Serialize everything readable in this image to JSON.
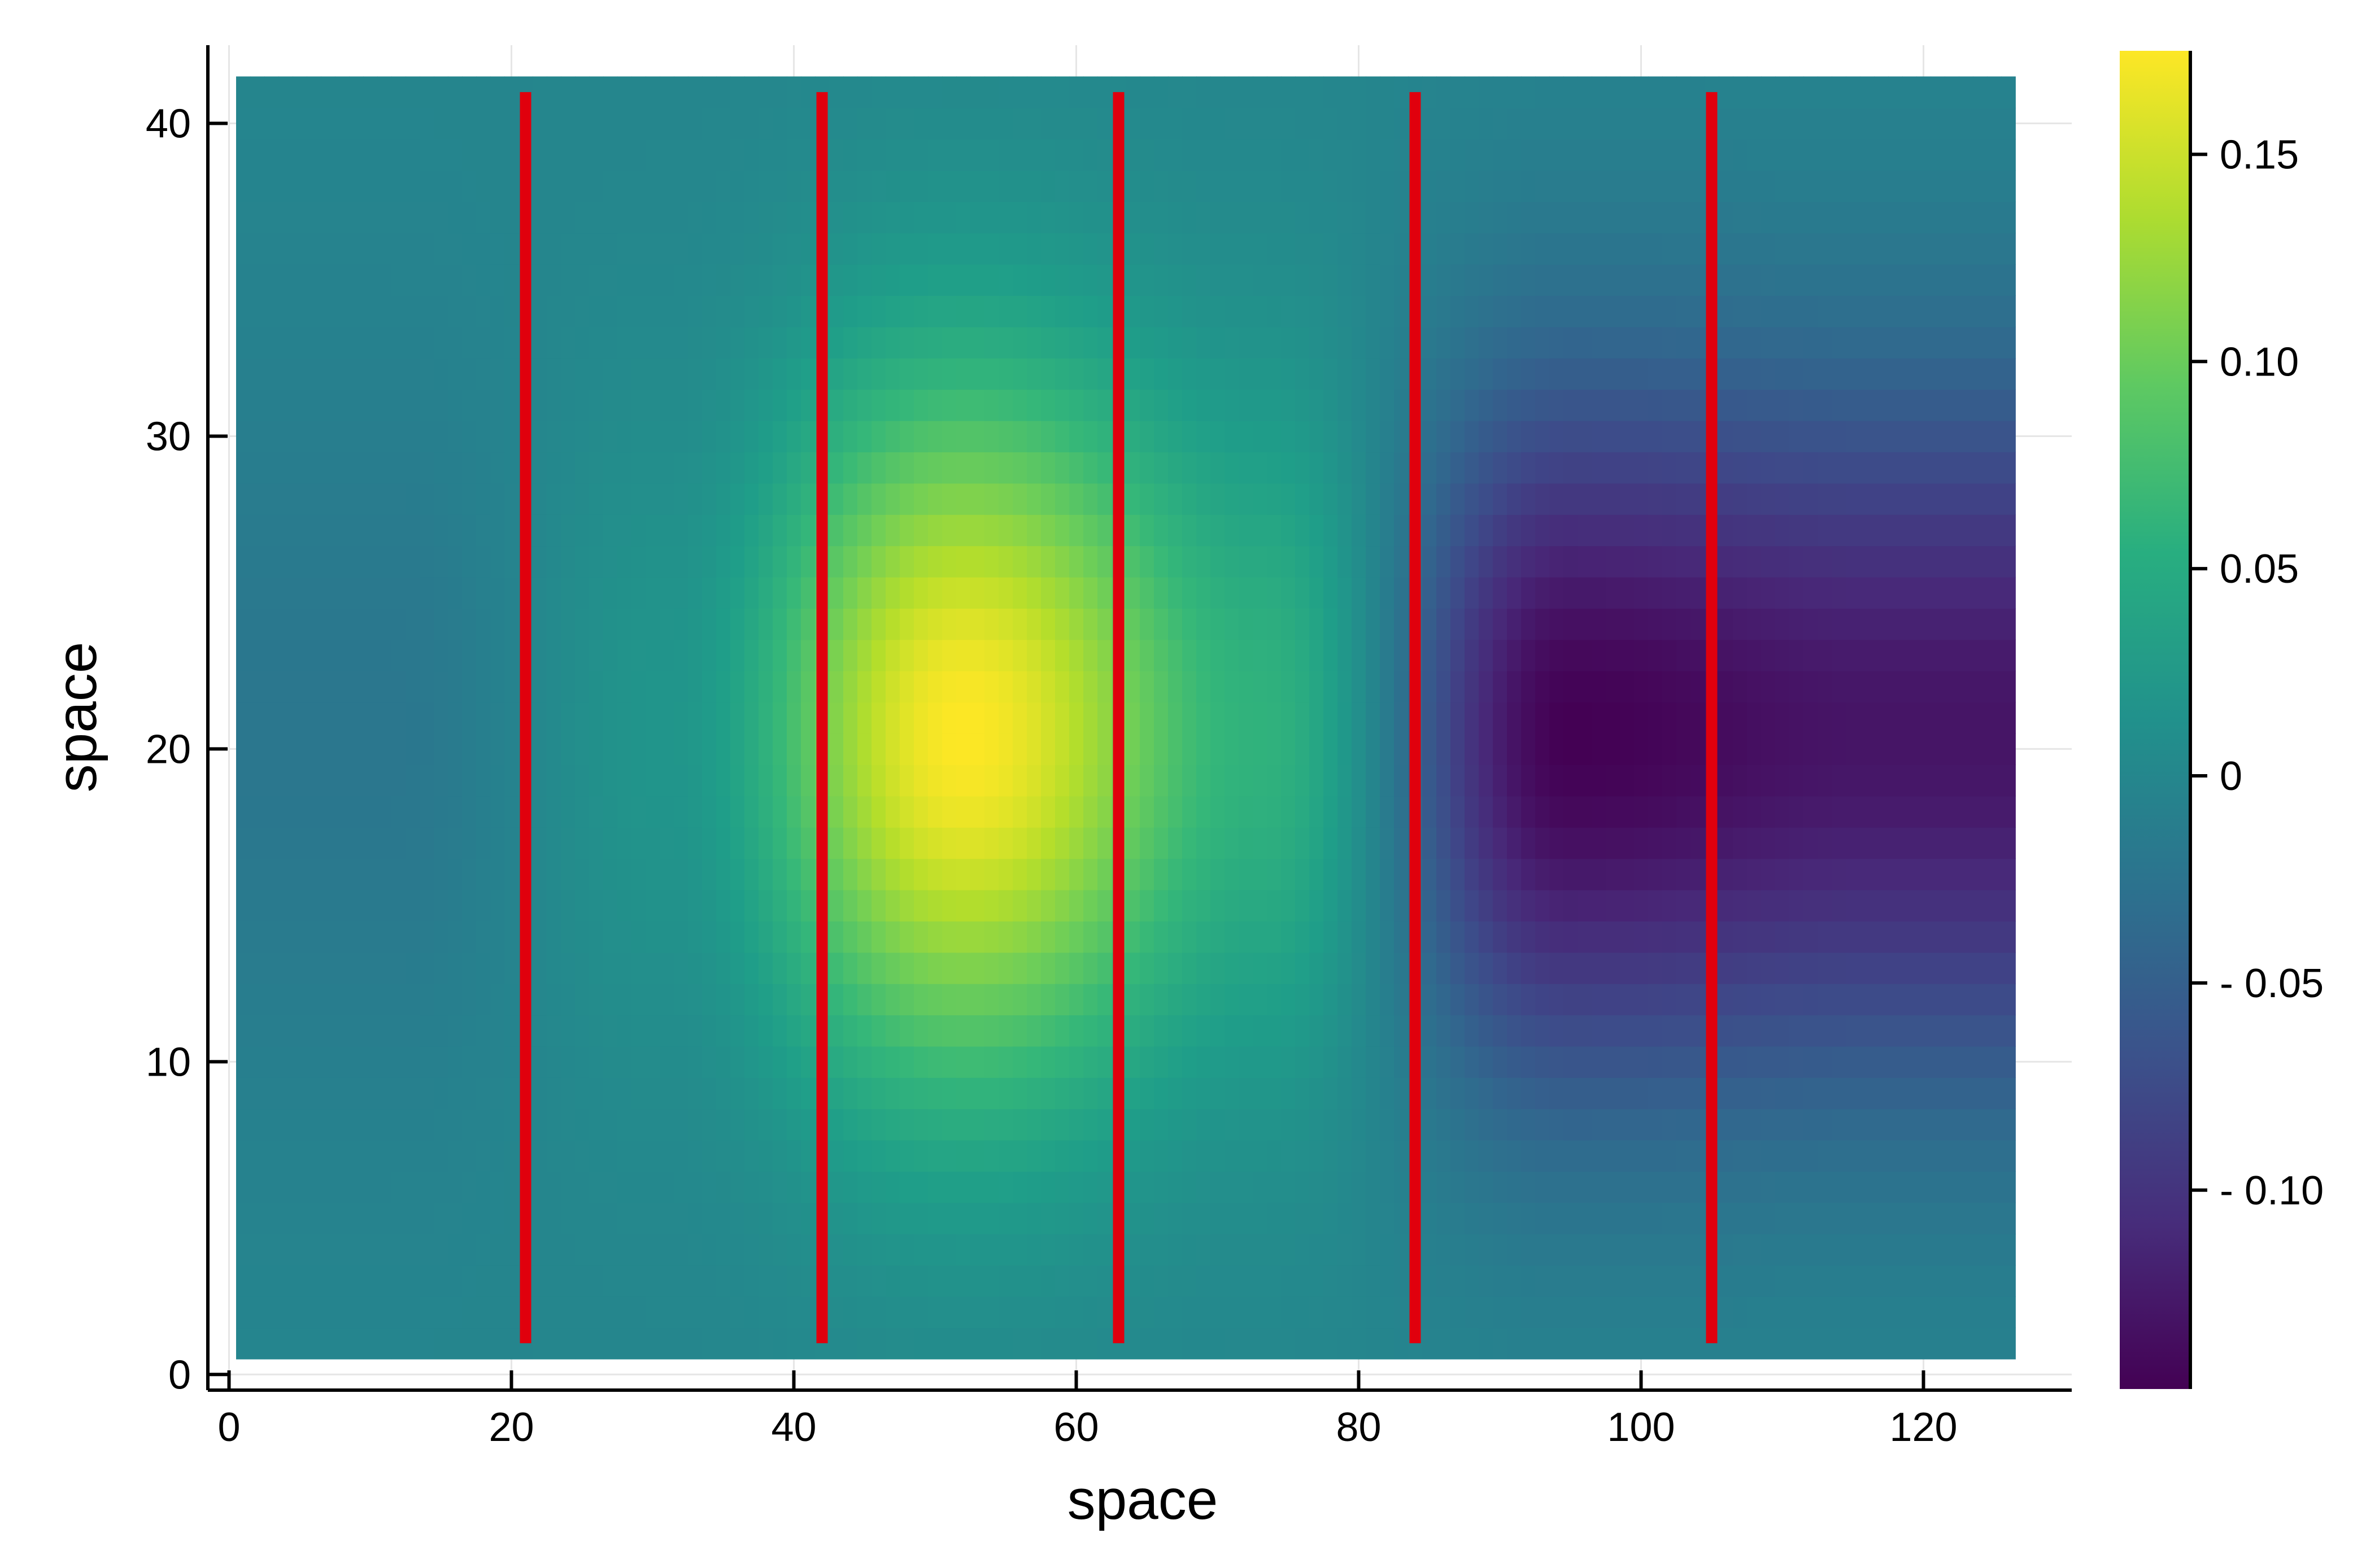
{
  "chart_data": {
    "type": "heatmap",
    "title": "",
    "xlabel": "space",
    "ylabel": "space",
    "xlim": [
      -1.5,
      130.5
    ],
    "ylim": [
      -0.5,
      42.5
    ],
    "xticks": [
      {
        "value": 0,
        "label": "0"
      },
      {
        "value": 20,
        "label": "20"
      },
      {
        "value": 40,
        "label": "40"
      },
      {
        "value": 60,
        "label": "60"
      },
      {
        "value": 80,
        "label": "80"
      },
      {
        "value": 100,
        "label": "100"
      },
      {
        "value": 120,
        "label": "120"
      }
    ],
    "yticks": [
      {
        "value": 0,
        "label": "0"
      },
      {
        "value": 10,
        "label": "10"
      },
      {
        "value": 20,
        "label": "20"
      },
      {
        "value": 30,
        "label": "30"
      },
      {
        "value": 40,
        "label": "40"
      }
    ],
    "grid": true,
    "heatmap": {
      "x_extent": [
        0.5,
        126.5
      ],
      "y_extent": [
        0.5,
        41.5
      ],
      "colormap": "viridis",
      "peaks": [
        {
          "x": 11,
          "value": -0.02
        },
        {
          "x": 31,
          "value": 0.02
        },
        {
          "x": 52,
          "value": 0.175
        },
        {
          "x": 73,
          "value": 0.06
        },
        {
          "x": 95,
          "value": -0.148
        },
        {
          "x": 116,
          "value": -0.13
        }
      ],
      "y_center": 20.5,
      "note_profile": "values vary smoothly along x between peaks and fade toward the top and bottom edges"
    },
    "vertical_lines": {
      "color": "#e0000d",
      "x": [
        21,
        42,
        63,
        84,
        105
      ],
      "y_range": [
        1,
        41
      ]
    },
    "colorbar": {
      "range": [
        -0.148,
        0.175
      ],
      "ticks": [
        {
          "value": 0.15,
          "label": "0.15"
        },
        {
          "value": 0.1,
          "label": "0.10"
        },
        {
          "value": 0.05,
          "label": "0.05"
        },
        {
          "value": 0,
          "label": "0"
        },
        {
          "value": -0.05,
          "label": "- 0.05"
        },
        {
          "value": -0.1,
          "label": "- 0.10"
        }
      ]
    }
  }
}
